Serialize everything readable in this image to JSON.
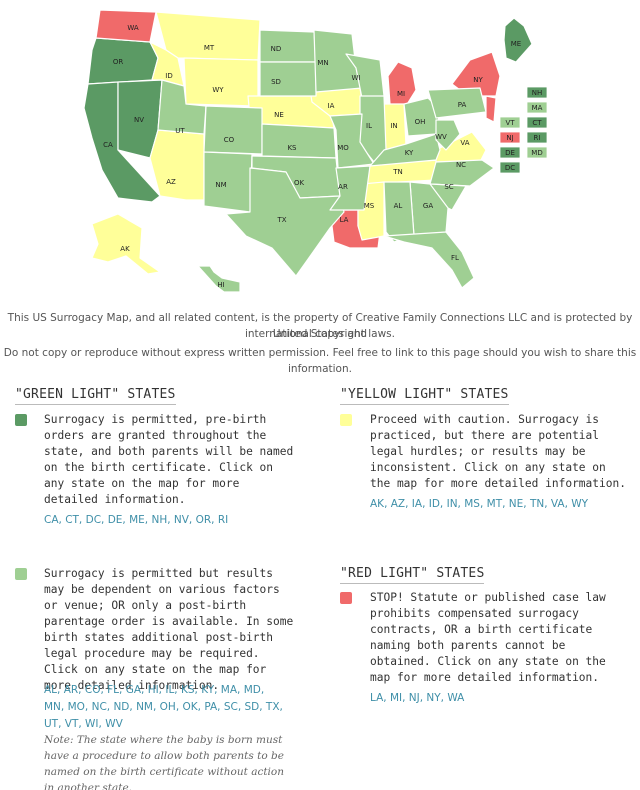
{
  "colors": {
    "dark_green": "#5b9a64",
    "light_green": "#9fcf93",
    "yellow": "#ffff99",
    "red": "#f06a6a",
    "state_link": "#3f8fa8"
  },
  "map": {
    "labels": {
      "WA": "WA",
      "OR": "OR",
      "CA": "CA",
      "NV": "NV",
      "ID": "ID",
      "MT": "MT",
      "WY": "WY",
      "UT": "UT",
      "AZ": "AZ",
      "CO": "CO",
      "NM": "NM",
      "ND": "ND",
      "SD": "SD",
      "NE": "NE",
      "KS": "KS",
      "OK": "OK",
      "TX": "TX",
      "MN": "MN",
      "IA": "IA",
      "MO": "MO",
      "AR": "AR",
      "LA": "LA",
      "WI": "WI",
      "IL": "IL",
      "MI": "MI",
      "IN": "IN",
      "OH": "OH",
      "KY": "KY",
      "TN": "TN",
      "MS": "MS",
      "AL": "AL",
      "GA": "GA",
      "FL": "FL",
      "SC": "SC",
      "NC": "NC",
      "VA": "VA",
      "WV": "WV",
      "PA": "PA",
      "NY": "NY",
      "ME": "ME",
      "AK": "AK",
      "HI": "HI"
    },
    "small_states": [
      {
        "code": "NH",
        "category": "green"
      },
      {
        "code": "MA",
        "category": "light_green"
      },
      {
        "code": "VT",
        "category": "light_green"
      },
      {
        "code": "CT",
        "category": "green"
      },
      {
        "code": "NJ",
        "category": "red"
      },
      {
        "code": "RI",
        "category": "green"
      },
      {
        "code": "DE",
        "category": "green"
      },
      {
        "code": "MD",
        "category": "light_green"
      },
      {
        "code": "DC",
        "category": "green"
      }
    ]
  },
  "copyright": {
    "line1": "This US Surrogacy Map, and all related content, is the property of Creative Family Connections LLC and is protected by United States and",
    "line2": "international copyright laws.",
    "line3": "Do not copy or reproduce without express written permission. Feel free to link to this page should you wish to share this information."
  },
  "legend": {
    "green": {
      "title": "\"GREEN LIGHT\" STATES",
      "dark_description": "Surrogacy is permitted, pre-birth orders are granted throughout the state, and both parents will be named on the birth certificate. Click on any state on the map for more detailed information.",
      "dark_states": "CA, CT, DC, DE, ME, NH, NV, OR, RI",
      "light_description": "Surrogacy is permitted but results may be dependent on various factors or venue; OR only a post-birth parentage order is available. In some birth states additional post-birth legal procedure may be required. Click on any state on the map for more detailed information.",
      "light_states": "AL, AR, CO, FL, GA, HI, IL, KS, KY, MA, MD, MN, MO, NC, ND, NM, OH, OK, PA, SC, SD, TX, UT, VT, WI, WV",
      "note": "Note: The state where the baby is born must have a procedure to allow both parents to be named on the birth certificate without action in another state."
    },
    "yellow": {
      "title": "\"YELLOW LIGHT\" STATES",
      "description": "Proceed with caution. Surrogacy is practiced, but there are potential legal hurdles; or results may be inconsistent. Click on any state on the map for more detailed information.",
      "states": "AK, AZ, IA, ID, IN, MS, MT, NE, TN, VA, WY"
    },
    "red": {
      "title": "\"RED LIGHT\" STATES",
      "description": "STOP! Statute or published case law prohibits compensated surrogacy contracts, OR a birth certificate naming both parents cannot be obtained. Click on any state on the map for more detailed information.",
      "states": "LA, MI, NJ, NY, WA"
    }
  }
}
